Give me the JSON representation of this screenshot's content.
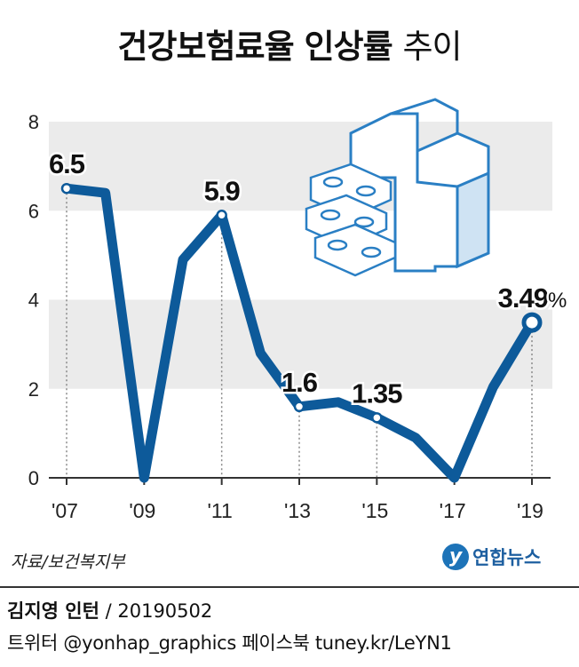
{
  "title": {
    "main": "건강보험료율 인상률",
    "suffix": "추이"
  },
  "chart_data": {
    "type": "line",
    "title": "건강보험료율 인상률 추이",
    "x": [
      2007,
      2008,
      2009,
      2010,
      2011,
      2012,
      2013,
      2014,
      2015,
      2016,
      2017,
      2018,
      2019
    ],
    "values": [
      6.5,
      6.4,
      0,
      4.9,
      5.9,
      2.8,
      1.6,
      1.7,
      1.35,
      0.9,
      0,
      2.04,
      3.49
    ],
    "x_tick_labels": [
      "'07",
      "'09",
      "'11",
      "'13",
      "'15",
      "'17",
      "'19"
    ],
    "y_ticks": [
      "0",
      "2",
      "4",
      "6",
      "8"
    ],
    "ylim": [
      0,
      8
    ],
    "data_labels": [
      {
        "year": 2007,
        "text": "6.5"
      },
      {
        "year": 2011,
        "text": "5.9"
      },
      {
        "year": 2013,
        "text": "1.6"
      },
      {
        "year": 2015,
        "text": "1.35"
      },
      {
        "year": 2019,
        "text": "3.49",
        "unit": "%"
      }
    ],
    "grid": "alternating bands",
    "line_color": "#0d5a9a",
    "band_color": "#ebebeb"
  },
  "source": "자료/보건복지부",
  "logo": {
    "mark": "y",
    "text": "연합뉴스"
  },
  "footer": {
    "author": "김지영 인턴",
    "date": "/ 20190502",
    "social": "트위터 @yonhap_graphics  페이스북 tuney.kr/LeYN1"
  }
}
